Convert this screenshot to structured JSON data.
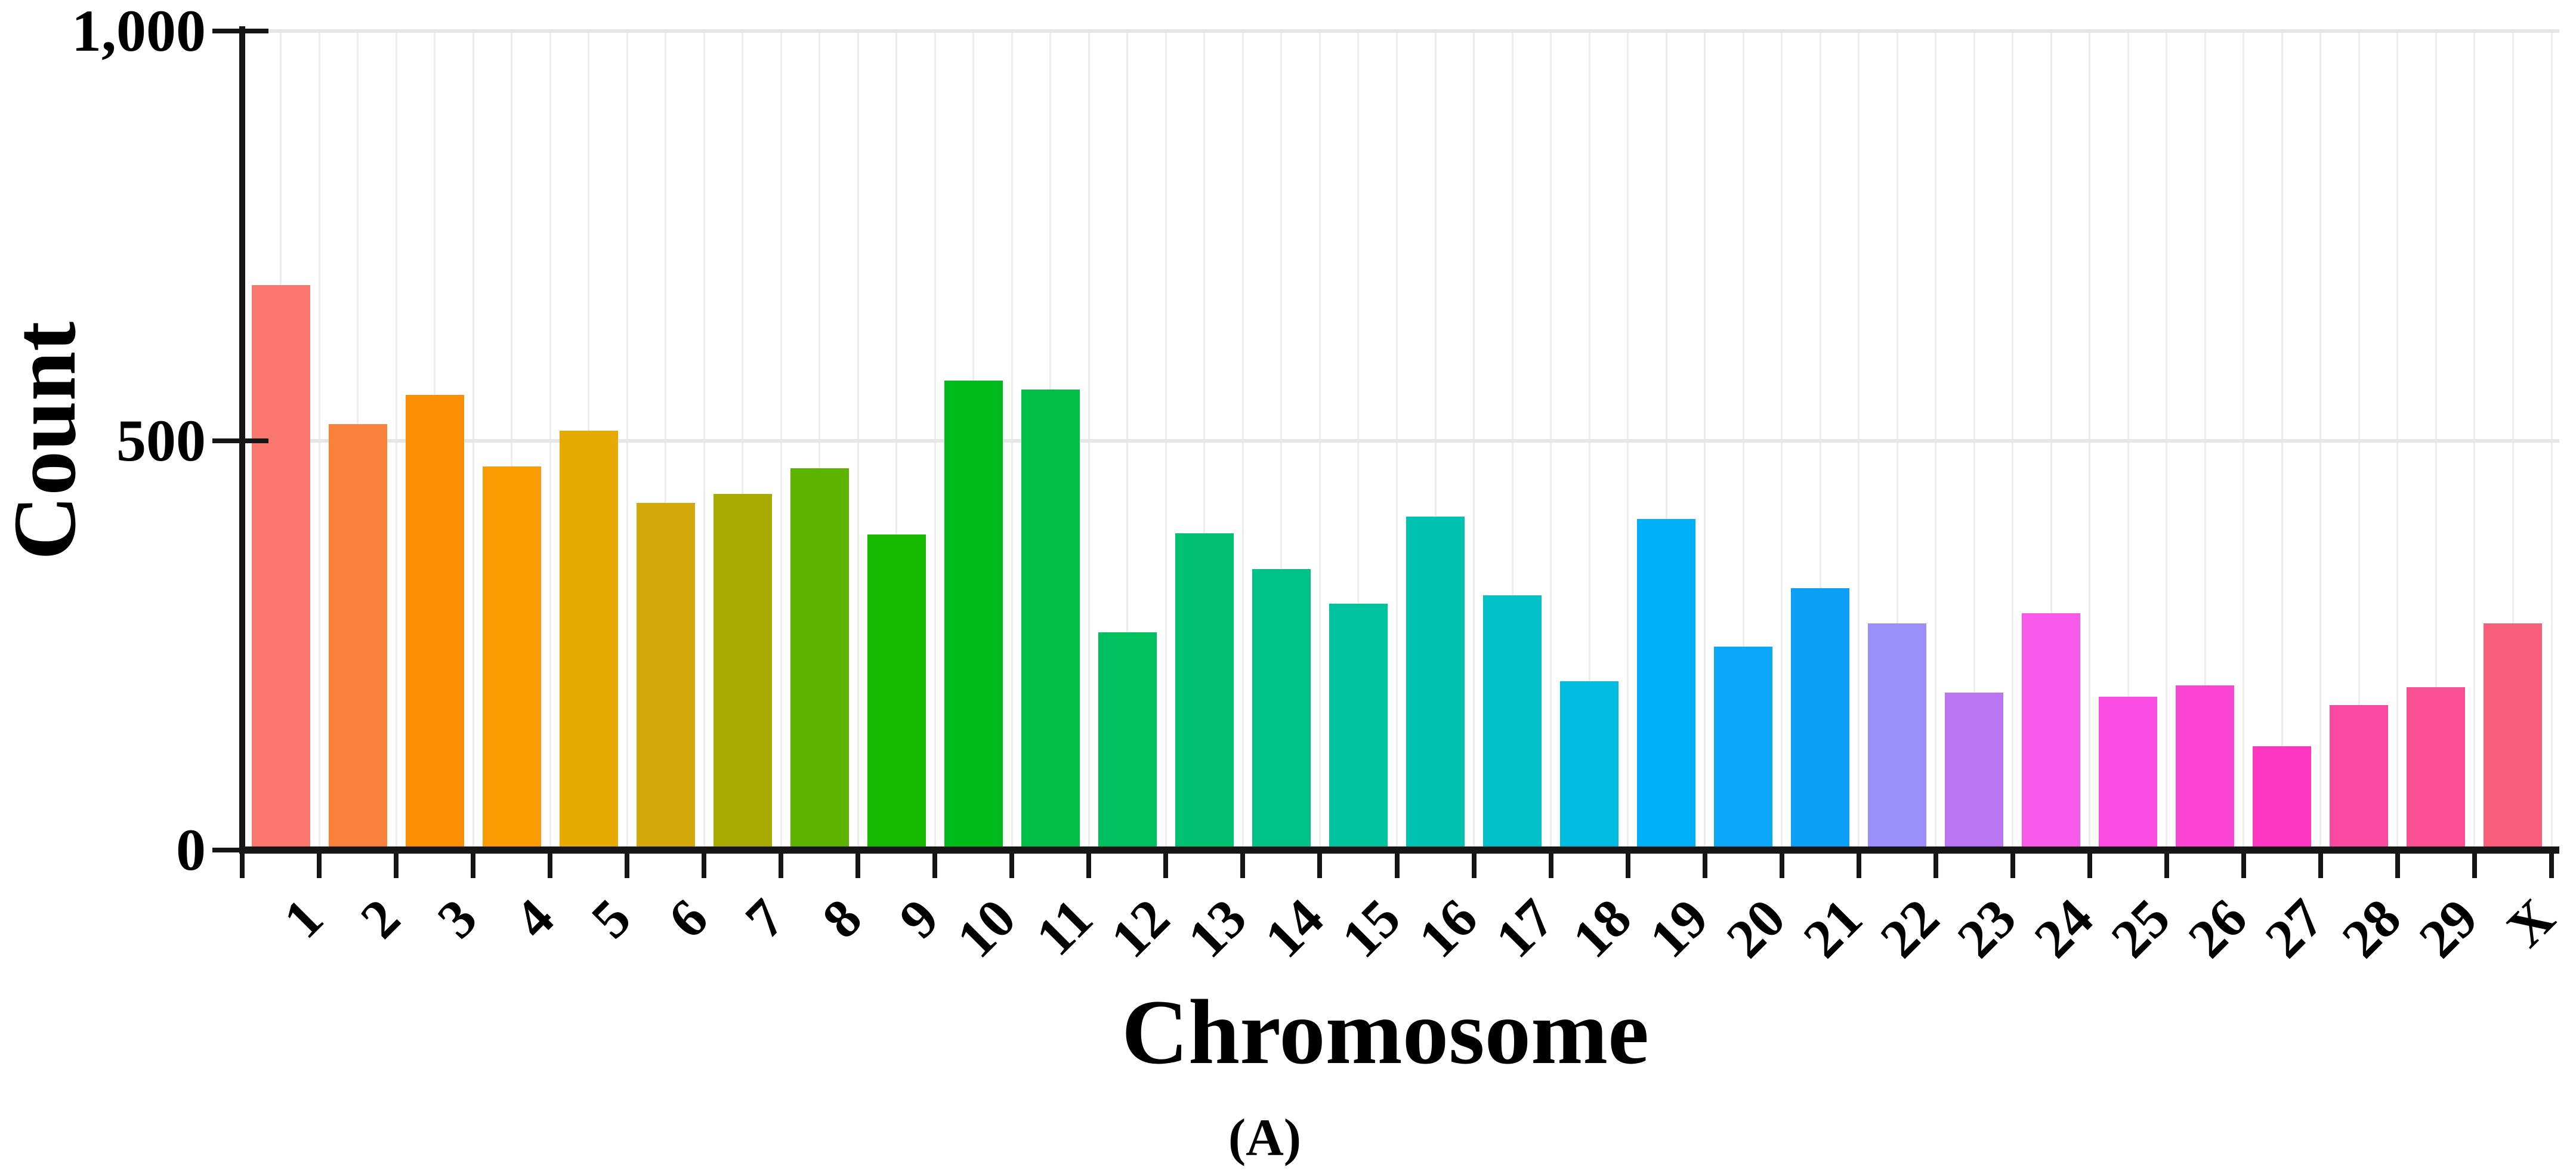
{
  "figure": {
    "panel_label": "(A)"
  },
  "chart_data": {
    "type": "bar",
    "title": "",
    "xlabel": "Chromosome",
    "ylabel": "Count",
    "ylim": [
      0,
      1000
    ],
    "yticks": [
      {
        "value": 0,
        "label": "0"
      },
      {
        "value": 500,
        "label": "500"
      },
      {
        "value": 1000,
        "label": "1,000"
      }
    ],
    "grid": {
      "horizontal_lines_at": [
        500,
        1000
      ],
      "vertical_minor_lines": true
    },
    "legend": "none",
    "categories": [
      "1",
      "2",
      "3",
      "4",
      "5",
      "6",
      "7",
      "8",
      "9",
      "10",
      "11",
      "12",
      "13",
      "14",
      "15",
      "16",
      "17",
      "18",
      "19",
      "20",
      "21",
      "22",
      "23",
      "24",
      "25",
      "26",
      "27",
      "28",
      "29",
      "X"
    ],
    "values": [
      690,
      520,
      556,
      468,
      512,
      424,
      435,
      466,
      385,
      573,
      562,
      266,
      387,
      343,
      301,
      407,
      311,
      206,
      404,
      248,
      320,
      277,
      192,
      289,
      187,
      201,
      127,
      177,
      199,
      277
    ],
    "colors": [
      "#F8766D",
      "#F8813C",
      "#FB8F03",
      "#FA9B04",
      "#E7A903",
      "#D2A80B",
      "#A9AA00",
      "#5CB300",
      "#17B800",
      "#00BB1C",
      "#00BE46",
      "#00BF5F",
      "#00C071",
      "#00C187",
      "#00C29C",
      "#00C2B0",
      "#00C0C6",
      "#00BAE0",
      "#00AFF5",
      "#0AA8F6",
      "#0C9FF8",
      "#9B8FF9",
      "#BA75F2",
      "#F859E8",
      "#F94BE2",
      "#FA44D4",
      "#FC36BF",
      "#FA479F",
      "#F95094",
      "#F85E79"
    ],
    "axis_color": "#161616",
    "bar_count": 30
  }
}
